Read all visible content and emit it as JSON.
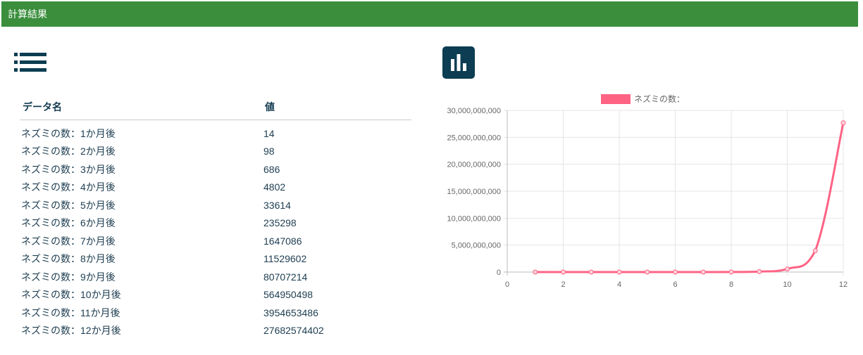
{
  "header": {
    "title": "計算結果"
  },
  "icons": {
    "list": "list-icon",
    "chart": "bar-chart-icon"
  },
  "table": {
    "headers": [
      "データ名",
      "値"
    ],
    "rows": [
      [
        "ネズミの数：1か月後",
        "14"
      ],
      [
        "ネズミの数：2か月後",
        "98"
      ],
      [
        "ネズミの数：3か月後",
        "686"
      ],
      [
        "ネズミの数：4か月後",
        "4802"
      ],
      [
        "ネズミの数：5か月後",
        "33614"
      ],
      [
        "ネズミの数：6か月後",
        "235298"
      ],
      [
        "ネズミの数：7か月後",
        "1647086"
      ],
      [
        "ネズミの数：8か月後",
        "11529602"
      ],
      [
        "ネズミの数：9か月後",
        "80707214"
      ],
      [
        "ネズミの数：10か月後",
        "564950498"
      ],
      [
        "ネズミの数：11か月後",
        "3954653486"
      ],
      [
        "ネズミの数：12か月後",
        "27682574402"
      ]
    ]
  },
  "colors": {
    "header_bg": "#3a8e3c",
    "icon": "#0c3d52",
    "series": "#ff6384"
  },
  "chart_data": {
    "type": "line",
    "legend": "ネズミの数：",
    "x": [
      1,
      2,
      3,
      4,
      5,
      6,
      7,
      8,
      9,
      10,
      11,
      12
    ],
    "y": [
      14,
      98,
      686,
      4802,
      33614,
      235298,
      1647086,
      11529602,
      80707214,
      564950498,
      3954653486,
      27682574402
    ],
    "xlim": [
      0,
      12
    ],
    "ylim": [
      0,
      30000000000
    ],
    "xticks": [
      0,
      2,
      4,
      6,
      8,
      10,
      12
    ],
    "yticks": [
      0,
      5000000000,
      10000000000,
      15000000000,
      20000000000,
      25000000000,
      30000000000
    ],
    "ytick_labels": [
      "0",
      "5,000,000,000",
      "10,000,000,000",
      "15,000,000,000",
      "20,000,000,000",
      "25,000,000,000",
      "30,000,000,000"
    ],
    "grid": true
  }
}
